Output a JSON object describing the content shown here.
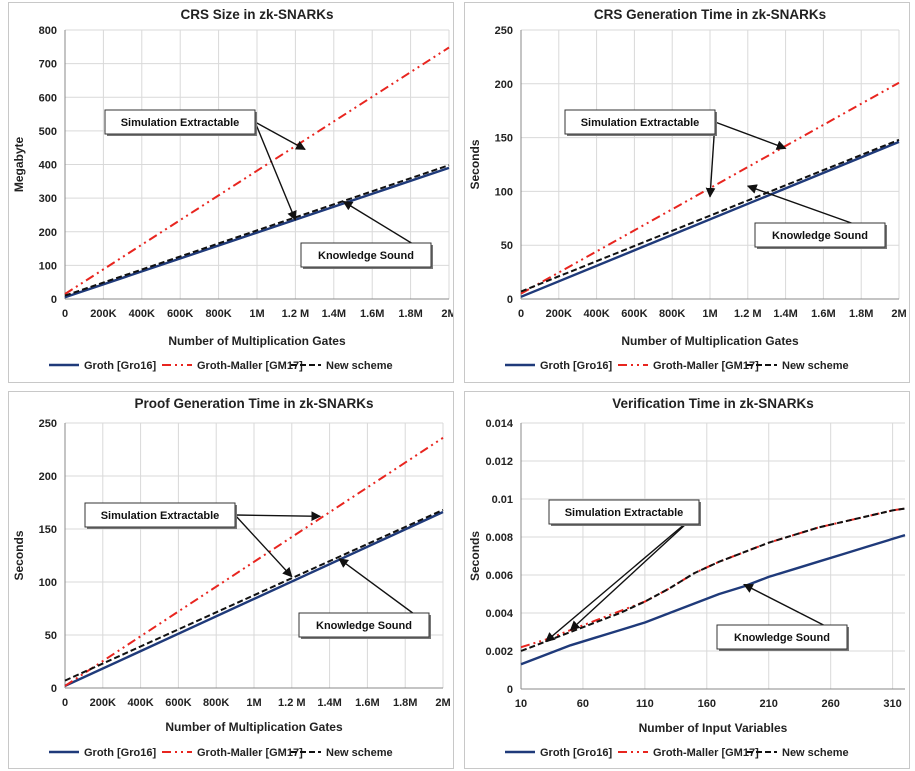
{
  "colors": {
    "groth": "#1f3a7a",
    "gm": "#e8251f",
    "new": "#111111",
    "grid": "#d9d9d9"
  },
  "legend": [
    "Groth [Gro16]",
    "Groth-Maller [GM17]",
    "New scheme"
  ],
  "chart_data": [
    {
      "type": "line",
      "title": "CRS Size in zk-SNARKs",
      "xlabel": "Number of Multiplication Gates",
      "ylabel": "Megabyte",
      "xlim": [
        0,
        2000000
      ],
      "ylim": [
        0,
        800
      ],
      "ystep": 100,
      "xticks": [
        0,
        200000,
        400000,
        600000,
        800000,
        1000000,
        1200000,
        1400000,
        1600000,
        1800000,
        2000000
      ],
      "xtick_labels": [
        "0",
        "200K",
        "400K",
        "600K",
        "800K",
        "1M",
        "1.2 M",
        "1.4M",
        "1.6M",
        "1.8M",
        "2M"
      ],
      "ytick_labels": [
        "0",
        "100",
        "200",
        "300",
        "400",
        "500",
        "600",
        "700",
        "800"
      ],
      "grid": true,
      "series": [
        {
          "name": "Groth [Gro16]",
          "x": [
            0,
            2000000
          ],
          "y": [
            5,
            390
          ]
        },
        {
          "name": "Groth-Maller [GM17]",
          "x": [
            0,
            2000000
          ],
          "y": [
            15,
            748
          ]
        },
        {
          "name": "New scheme",
          "x": [
            0,
            2000000
          ],
          "y": [
            10,
            398
          ]
        }
      ],
      "annotations": [
        {
          "text": "Simulation Extractable",
          "targets": [
            [
              1250000,
              445
            ],
            [
              1200000,
              235
            ]
          ]
        },
        {
          "text": "Knowledge Sound",
          "targets": [
            [
              1450000,
              290
            ]
          ]
        }
      ]
    },
    {
      "type": "line",
      "title": "CRS Generation Time in zk-SNARKs",
      "xlabel": "Number of Multiplication Gates",
      "ylabel": "Seconds",
      "xlim": [
        0,
        2000000
      ],
      "ylim": [
        0,
        250
      ],
      "ystep": 50,
      "xticks": [
        0,
        200000,
        400000,
        600000,
        800000,
        1000000,
        1200000,
        1400000,
        1600000,
        1800000,
        2000000
      ],
      "xtick_labels": [
        "0",
        "200K",
        "400K",
        "600K",
        "800K",
        "1M",
        "1.2 M",
        "1.4M",
        "1.6M",
        "1.8M",
        "2M"
      ],
      "ytick_labels": [
        "0",
        "50",
        "100",
        "150",
        "200",
        "250"
      ],
      "grid": true,
      "series": [
        {
          "name": "Groth [Gro16]",
          "x": [
            0,
            2000000
          ],
          "y": [
            2,
            146
          ]
        },
        {
          "name": "Groth-Maller [GM17]",
          "x": [
            0,
            2000000
          ],
          "y": [
            5,
            201
          ]
        },
        {
          "name": "New scheme",
          "x": [
            0,
            2000000
          ],
          "y": [
            7,
            148
          ]
        }
      ],
      "annotations": [
        {
          "text": "Simulation Extractable",
          "targets": [
            [
              1400000,
              140
            ],
            [
              1000000,
              95
            ]
          ]
        },
        {
          "text": "Knowledge Sound",
          "targets": [
            [
              1200000,
              105
            ]
          ]
        }
      ]
    },
    {
      "type": "line",
      "title": "Proof Generation Time in zk-SNARKs",
      "xlabel": "Number of Multiplication Gates",
      "ylabel": "Seconds",
      "xlim": [
        0,
        2000000
      ],
      "ylim": [
        0,
        250
      ],
      "ystep": 50,
      "xticks": [
        0,
        200000,
        400000,
        600000,
        800000,
        1000000,
        1200000,
        1400000,
        1600000,
        1800000,
        2000000
      ],
      "xtick_labels": [
        "0",
        "200K",
        "400K",
        "600K",
        "800K",
        "1M",
        "1.2 M",
        "1.4M",
        "1.6M",
        "1.8M",
        "2M"
      ],
      "ytick_labels": [
        "0",
        "50",
        "100",
        "150",
        "200",
        "250"
      ],
      "grid": true,
      "series": [
        {
          "name": "Groth [Gro16]",
          "x": [
            0,
            2000000
          ],
          "y": [
            2,
            166
          ]
        },
        {
          "name": "Groth-Maller [GM17]",
          "x": [
            0,
            2000000
          ],
          "y": [
            2,
            236
          ]
        },
        {
          "name": "New scheme",
          "x": [
            0,
            2000000
          ],
          "y": [
            7,
            168
          ]
        }
      ],
      "annotations": [
        {
          "text": "Simulation Extractable",
          "targets": [
            [
              1350000,
              162
            ],
            [
              1200000,
              105
            ]
          ]
        },
        {
          "text": "Knowledge Sound",
          "targets": [
            [
              1450000,
              122
            ]
          ]
        }
      ]
    },
    {
      "type": "line",
      "title": "Verification Time in zk-SNARKs",
      "xlabel": "Number of Input Variables",
      "ylabel": "Seconds",
      "xlim": [
        10,
        320
      ],
      "ylim": [
        0,
        0.014
      ],
      "ystep": 0.002,
      "xticks": [
        10,
        60,
        110,
        160,
        210,
        260,
        310
      ],
      "xtick_labels": [
        "10",
        "60",
        "110",
        "160",
        "210",
        "260",
        "310"
      ],
      "ytick_labels": [
        "0",
        "0.002",
        "0.004",
        "0.006",
        "0.008",
        "0.01",
        "0.012",
        "0.014"
      ],
      "grid": true,
      "series": [
        {
          "name": "Groth [Gro16]",
          "x": [
            10,
            30,
            50,
            70,
            90,
            110,
            130,
            150,
            170,
            190,
            210,
            230,
            250,
            270,
            290,
            310,
            320
          ],
          "y": [
            0.0013,
            0.0018,
            0.0023,
            0.0027,
            0.0031,
            0.0035,
            0.004,
            0.0045,
            0.005,
            0.0054,
            0.0059,
            0.0063,
            0.0067,
            0.0071,
            0.0075,
            0.0079,
            0.0081
          ]
        },
        {
          "name": "Groth-Maller [GM17]",
          "x": [
            10,
            30,
            50,
            70,
            90,
            110,
            130,
            150,
            170,
            190,
            210,
            230,
            250,
            270,
            290,
            310,
            320
          ],
          "y": [
            0.0022,
            0.0026,
            0.0031,
            0.0036,
            0.0041,
            0.0046,
            0.0053,
            0.0061,
            0.0067,
            0.0072,
            0.0077,
            0.0081,
            0.0085,
            0.0088,
            0.0091,
            0.0094,
            0.0095
          ]
        },
        {
          "name": "New scheme",
          "x": [
            10,
            30,
            50,
            70,
            90,
            110,
            130,
            150,
            170,
            190,
            210,
            230,
            250,
            270,
            290,
            310,
            320
          ],
          "y": [
            0.002,
            0.0025,
            0.003,
            0.0035,
            0.004,
            0.0046,
            0.0053,
            0.0061,
            0.0067,
            0.0072,
            0.0077,
            0.0081,
            0.0085,
            0.0088,
            0.0091,
            0.0094,
            0.0095
          ]
        }
      ],
      "annotations": [
        {
          "text": "Simulation Extractable",
          "targets": [
            [
              30,
              0.0025
            ],
            [
              50,
              0.0031
            ]
          ]
        },
        {
          "text": "Knowledge Sound",
          "targets": [
            [
              190,
              0.0055
            ]
          ]
        }
      ]
    }
  ]
}
